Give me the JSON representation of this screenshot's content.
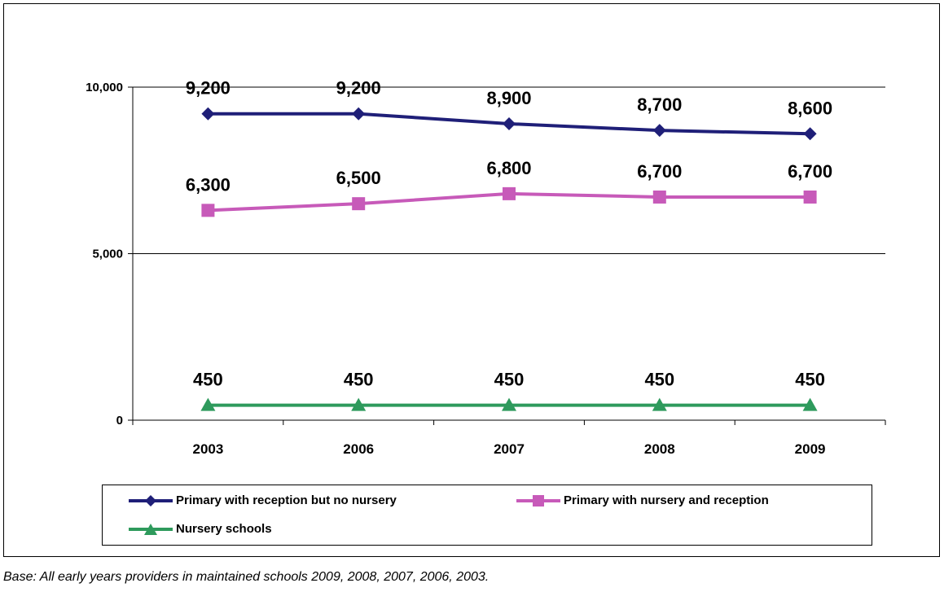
{
  "chart_data": {
    "type": "line",
    "categories": [
      "2003",
      "2006",
      "2007",
      "2008",
      "2009"
    ],
    "series": [
      {
        "name": "Primary with reception but no nursery",
        "values": [
          9200,
          9200,
          8900,
          8700,
          8600
        ],
        "labels": [
          "9,200",
          "9,200",
          "8,900",
          "8,700",
          "8,600"
        ],
        "color": "#1f1f78",
        "marker": "diamond"
      },
      {
        "name": "Primary with nursery and reception",
        "values": [
          6300,
          6500,
          6800,
          6700,
          6700
        ],
        "labels": [
          "6,300",
          "6,500",
          "6,800",
          "6,700",
          "6,700"
        ],
        "color": "#c75ab9",
        "marker": "square"
      },
      {
        "name": "Nursery schools",
        "values": [
          450,
          450,
          450,
          450,
          450
        ],
        "labels": [
          "450",
          "450",
          "450",
          "450",
          "450"
        ],
        "color": "#2e9a5c",
        "marker": "triangle"
      }
    ],
    "y_ticks": [
      0,
      5000,
      10000
    ],
    "y_tick_labels": [
      "0",
      "5,000",
      "10,000"
    ],
    "ylim": [
      0,
      10000
    ],
    "grid": true,
    "legend_position": "bottom"
  },
  "caption": "Base: All early years providers in maintained schools 2009, 2008, 2007, 2006, 2003."
}
